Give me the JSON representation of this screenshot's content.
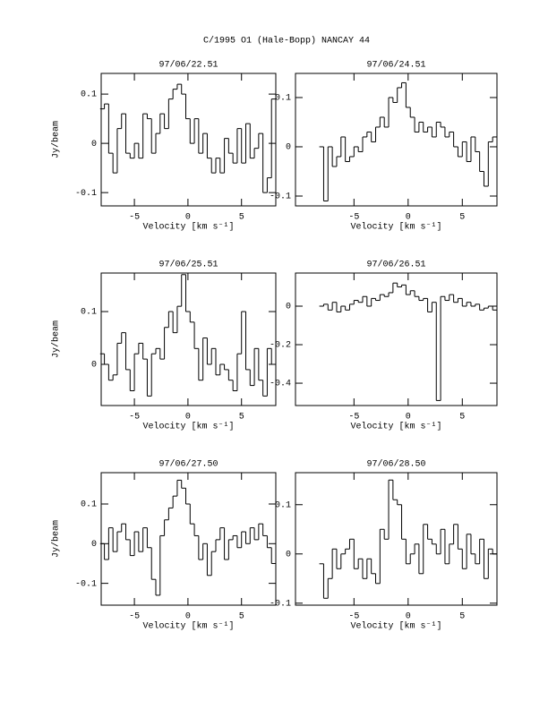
{
  "title": "C/1995 O1 (Hale-Bopp)   NANCAY    44",
  "chart_data": [
    {
      "type": "step",
      "title": "97/06/22.51",
      "ylabel": "Jy/beam",
      "xlabel": "Velocity [km s⁻¹]",
      "color": "#000000",
      "x": [
        -8,
        -7.6,
        -7.2,
        -6.8,
        -6.4,
        -6,
        -5.6,
        -5.2,
        -4.8,
        -4.4,
        -4,
        -3.6,
        -3.2,
        -2.8,
        -2.4,
        -2,
        -1.6,
        -1.2,
        -0.8,
        -0.4,
        0,
        0.4,
        0.8,
        1.2,
        1.6,
        2,
        2.4,
        2.8,
        3.2,
        3.6,
        4,
        4.4,
        4.8,
        5.2,
        5.6,
        6,
        6.4,
        6.8,
        7.2,
        7.6,
        8
      ],
      "values": [
        0.07,
        0.08,
        -0.02,
        -0.06,
        0.03,
        0.06,
        -0.02,
        -0.03,
        0.0,
        -0.03,
        0.06,
        0.05,
        -0.02,
        0.02,
        0.06,
        0.03,
        0.09,
        0.11,
        0.12,
        0.1,
        0.05,
        0.0,
        0.05,
        -0.02,
        0.02,
        -0.03,
        -0.06,
        -0.03,
        -0.06,
        0.01,
        -0.02,
        -0.04,
        0.03,
        -0.04,
        0.04,
        -0.03,
        -0.01,
        0.02,
        -0.1,
        -0.07,
        0.09
      ],
      "xlim": [
        -8.1,
        8.2
      ],
      "xticks": [
        -5,
        0,
        5
      ],
      "ylim": [
        -0.127,
        0.142
      ],
      "yticks": [
        -0.1,
        0,
        0.1
      ]
    },
    {
      "type": "step",
      "title": "97/06/24.51",
      "xlabel": "Velocity [km s⁻¹]",
      "color": "#000000",
      "x": [
        -8,
        -7.6,
        -7.2,
        -6.8,
        -6.4,
        -6,
        -5.6,
        -5.2,
        -4.8,
        -4.4,
        -4,
        -3.6,
        -3.2,
        -2.8,
        -2.4,
        -2,
        -1.6,
        -1.2,
        -0.8,
        -0.4,
        0,
        0.4,
        0.8,
        1.2,
        1.6,
        2,
        2.4,
        2.8,
        3.2,
        3.6,
        4,
        4.4,
        4.8,
        5.2,
        5.6,
        6,
        6.4,
        6.8,
        7.2,
        7.6,
        8
      ],
      "values": [
        0.0,
        -0.11,
        0.0,
        -0.04,
        -0.02,
        0.02,
        -0.03,
        -0.02,
        0.0,
        -0.01,
        0.02,
        0.03,
        0.01,
        0.04,
        0.06,
        0.04,
        0.1,
        0.09,
        0.12,
        0.13,
        0.08,
        0.06,
        0.03,
        0.05,
        0.03,
        0.04,
        0.02,
        0.05,
        0.04,
        0.02,
        0.03,
        0.0,
        -0.02,
        0.01,
        -0.03,
        0.02,
        -0.01,
        -0.05,
        -0.08,
        0.01,
        0.02
      ],
      "xlim": [
        -10.4,
        8.2
      ],
      "xticks": [
        -5,
        0,
        5
      ],
      "ylim": [
        -0.12,
        0.149
      ],
      "yticks": [
        -0.1,
        0,
        0.1
      ]
    },
    {
      "type": "step",
      "title": "97/06/25.51",
      "ylabel": "Jy/beam",
      "xlabel": "Velocity [km s⁻¹]",
      "color": "#000000",
      "x": [
        -8,
        -7.6,
        -7.2,
        -6.8,
        -6.4,
        -6,
        -5.6,
        -5.2,
        -4.8,
        -4.4,
        -4,
        -3.6,
        -3.2,
        -2.8,
        -2.4,
        -2,
        -1.6,
        -1.2,
        -0.8,
        -0.4,
        0,
        0.4,
        0.8,
        1.2,
        1.6,
        2,
        2.4,
        2.8,
        3.2,
        3.6,
        4,
        4.4,
        4.8,
        5.2,
        5.6,
        6,
        6.4,
        6.8,
        7.2,
        7.6,
        8
      ],
      "values": [
        0.02,
        0.0,
        -0.03,
        -0.02,
        0.04,
        0.06,
        -0.01,
        -0.05,
        0.02,
        0.04,
        0.01,
        -0.06,
        0.02,
        0.03,
        0.01,
        0.07,
        0.1,
        0.06,
        0.11,
        0.17,
        0.1,
        0.08,
        0.03,
        -0.03,
        0.05,
        0.0,
        0.03,
        -0.02,
        0.0,
        -0.01,
        -0.03,
        -0.05,
        0.02,
        0.1,
        -0.01,
        -0.04,
        0.03,
        -0.03,
        -0.06,
        0.03,
        0.0
      ],
      "xlim": [
        -8.1,
        8.2
      ],
      "xticks": [
        -5,
        0,
        5
      ],
      "ylim": [
        -0.078,
        0.173
      ],
      "yticks": [
        0,
        0.1
      ]
    },
    {
      "type": "step",
      "title": "97/06/26.51",
      "xlabel": "Velocity [km s⁻¹]",
      "color": "#000000",
      "x": [
        -8,
        -7.6,
        -7.2,
        -6.8,
        -6.4,
        -6,
        -5.6,
        -5.2,
        -4.8,
        -4.4,
        -4,
        -3.6,
        -3.2,
        -2.8,
        -2.4,
        -2,
        -1.6,
        -1.2,
        -0.8,
        -0.4,
        0,
        0.4,
        0.8,
        1.2,
        1.6,
        2,
        2.4,
        2.8,
        3.2,
        3.6,
        4,
        4.4,
        4.8,
        5.2,
        5.6,
        6,
        6.4,
        6.8,
        7.2,
        7.6,
        8
      ],
      "values": [
        0.0,
        0.01,
        -0.02,
        0.02,
        -0.03,
        0.0,
        -0.02,
        0.01,
        0.03,
        0.02,
        0.05,
        0.0,
        0.04,
        0.03,
        0.06,
        0.05,
        0.07,
        0.12,
        0.1,
        0.11,
        0.06,
        0.08,
        0.05,
        0.03,
        0.04,
        -0.03,
        0.02,
        -0.49,
        0.05,
        0.03,
        0.06,
        0.02,
        0.04,
        0.0,
        0.02,
        0.0,
        0.01,
        -0.02,
        -0.01,
        0.0,
        -0.02
      ],
      "xlim": [
        -10.4,
        8.2
      ],
      "xticks": [
        -5,
        0,
        5
      ],
      "ylim": [
        -0.516,
        0.172
      ],
      "yticks": [
        -0.4,
        -0.2,
        0
      ]
    },
    {
      "type": "step",
      "title": "97/06/27.50",
      "ylabel": "Jy/beam",
      "xlabel": "Velocity [km s⁻¹]",
      "color": "#000000",
      "x": [
        -8,
        -7.6,
        -7.2,
        -6.8,
        -6.4,
        -6,
        -5.6,
        -5.2,
        -4.8,
        -4.4,
        -4,
        -3.6,
        -3.2,
        -2.8,
        -2.4,
        -2,
        -1.6,
        -1.2,
        -0.8,
        -0.4,
        0,
        0.4,
        0.8,
        1.2,
        1.6,
        2,
        2.4,
        2.8,
        3.2,
        3.6,
        4,
        4.4,
        4.8,
        5.2,
        5.6,
        6,
        6.4,
        6.8,
        7.2,
        7.6,
        8
      ],
      "values": [
        0.0,
        -0.04,
        0.04,
        -0.02,
        0.03,
        0.05,
        0.01,
        -0.03,
        0.03,
        -0.02,
        0.04,
        -0.01,
        -0.09,
        -0.13,
        0.02,
        0.06,
        0.09,
        0.12,
        0.16,
        0.14,
        0.1,
        0.05,
        0.02,
        -0.04,
        0.0,
        -0.08,
        -0.02,
        0.01,
        0.04,
        -0.04,
        0.01,
        0.02,
        -0.01,
        0.03,
        0.0,
        0.04,
        0.01,
        0.05,
        0.02,
        -0.01,
        -0.05
      ],
      "xlim": [
        -8.1,
        8.2
      ],
      "xticks": [
        -5,
        0,
        5
      ],
      "ylim": [
        -0.155,
        0.179
      ],
      "yticks": [
        -0.1,
        0,
        0.1
      ]
    },
    {
      "type": "step",
      "title": "97/06/28.50",
      "xlabel": "Velocity [km s⁻¹]",
      "color": "#000000",
      "x": [
        -8,
        -7.6,
        -7.2,
        -6.8,
        -6.4,
        -6,
        -5.6,
        -5.2,
        -4.8,
        -4.4,
        -4,
        -3.6,
        -3.2,
        -2.8,
        -2.4,
        -2,
        -1.6,
        -1.2,
        -0.8,
        -0.4,
        0,
        0.4,
        0.8,
        1.2,
        1.6,
        2,
        2.4,
        2.8,
        3.2,
        3.6,
        4,
        4.4,
        4.8,
        5.2,
        5.6,
        6,
        6.4,
        6.8,
        7.2,
        7.6,
        8
      ],
      "values": [
        -0.02,
        -0.09,
        -0.05,
        0.01,
        -0.03,
        0.0,
        0.01,
        0.03,
        -0.03,
        -0.01,
        -0.05,
        -0.01,
        -0.04,
        -0.06,
        0.05,
        0.03,
        0.15,
        0.11,
        0.1,
        0.03,
        -0.02,
        0.0,
        0.02,
        -0.04,
        0.06,
        0.03,
        0.02,
        0.0,
        0.05,
        -0.02,
        0.02,
        0.06,
        0.01,
        -0.03,
        0.04,
        0.0,
        -0.02,
        0.03,
        -0.05,
        0.01,
        0.0
      ],
      "xlim": [
        -10.4,
        8.2
      ],
      "xticks": [
        -5,
        0,
        5
      ],
      "ylim": [
        -0.104,
        0.165
      ],
      "yticks": [
        -0.1,
        0,
        0.1
      ]
    }
  ]
}
